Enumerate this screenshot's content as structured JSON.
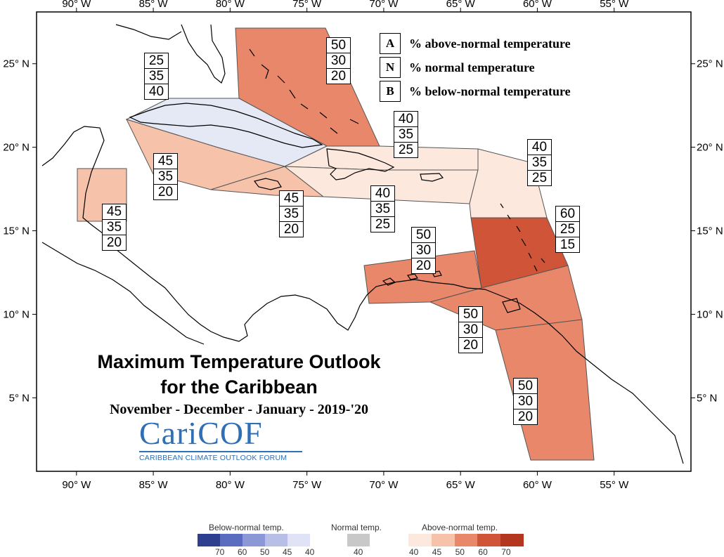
{
  "map": {
    "lon_ticks": [
      "90° W",
      "85° W",
      "80° W",
      "75° W",
      "70° W",
      "65° W",
      "60° W",
      "55° W"
    ],
    "lat_ticks": [
      "25° N",
      "20° N",
      "15° N",
      "10° N",
      "5° N"
    ],
    "extent": {
      "lon_min": -92.6,
      "lon_max": -50.0,
      "lat_min": 0.6,
      "lat_max": 28.1
    }
  },
  "key": [
    {
      "letter": "A",
      "text": "% above-normal temperature"
    },
    {
      "letter": "N",
      "text": "% normal temperature"
    },
    {
      "letter": "B",
      "text": "% below-normal temperature"
    }
  ],
  "regions": [
    {
      "id": "bahamas",
      "color": "#e8876a",
      "probs": [
        "50",
        "30",
        "20"
      ]
    },
    {
      "id": "cuba",
      "color": "#e4e9f5",
      "probs": [
        "25",
        "35",
        "40"
      ]
    },
    {
      "id": "western-caribbean-sea",
      "color": "#f6c2aa",
      "probs": [
        "45",
        "35",
        "20"
      ]
    },
    {
      "id": "jamaica",
      "color": "#f6c2aa",
      "probs": [
        "45",
        "35",
        "20"
      ]
    },
    {
      "id": "belize",
      "color": "#f6c2aa",
      "probs": [
        "45",
        "35",
        "20"
      ]
    },
    {
      "id": "hispaniola-puerto-rico",
      "color": "#fde8dd",
      "probs": [
        "40",
        "35",
        "25"
      ]
    },
    {
      "id": "hispaniola-south",
      "color": "#fde8dd",
      "probs": [
        "40",
        "35",
        "25"
      ]
    },
    {
      "id": "northern-leewards",
      "color": "#fde8dd",
      "probs": [
        "40",
        "35",
        "25"
      ]
    },
    {
      "id": "windward-islands",
      "color": "#d05438",
      "probs": [
        "60",
        "25",
        "15"
      ]
    },
    {
      "id": "abc-islands",
      "color": "#e8876a",
      "probs": [
        "50",
        "30",
        "20"
      ]
    },
    {
      "id": "trinidad-tobago",
      "color": "#e8876a",
      "probs": [
        "50",
        "30",
        "20"
      ]
    },
    {
      "id": "guianas",
      "color": "#e8876a",
      "probs": [
        "50",
        "30",
        "20"
      ]
    }
  ],
  "title": {
    "line1": "Maximum Temperature Outlook",
    "line2": "for the Caribbean",
    "line3": "November - December - January - 2019-'20"
  },
  "logo": {
    "name": "CariCOF",
    "subtitle": "CARIBBEAN CLIMATE OUTLOOK FORUM"
  },
  "colorbar": {
    "below": {
      "label": "Below-normal temp.",
      "colors": [
        "#2e3f8f",
        "#5a6cc0",
        "#8b97d6",
        "#b7bfe6",
        "#dfe3f5"
      ],
      "ticks": [
        "70",
        "60",
        "50",
        "45",
        "40"
      ]
    },
    "normal": {
      "label": "Normal temp.",
      "colors": [
        "#c8c8c8"
      ],
      "ticks": [
        "40"
      ]
    },
    "above": {
      "label": "Above-normal temp.",
      "colors": [
        "#fde8dd",
        "#f6c2aa",
        "#e8876a",
        "#d05438",
        "#b5361f"
      ],
      "ticks": [
        "40",
        "45",
        "50",
        "60",
        "70"
      ]
    }
  }
}
